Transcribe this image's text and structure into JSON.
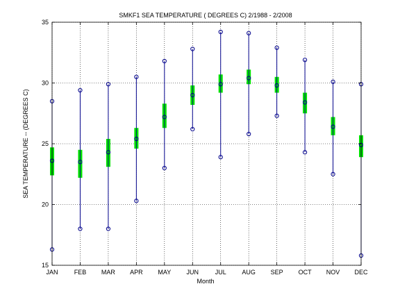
{
  "chart_data": {
    "type": "box",
    "title": "SMKF1  SEA TEMPERATURE ( DEGREES C) 2/1988 - 2/2008",
    "xlabel": "Month",
    "ylabel": "SEA TEMPERATURE -- (DEGREES C)",
    "ylim": [
      15,
      35
    ],
    "yticks": [
      15,
      20,
      25,
      30,
      35
    ],
    "grid": true,
    "categories": [
      "JAN",
      "FEB",
      "MAR",
      "APR",
      "MAY",
      "JUN",
      "JUL",
      "AUG",
      "SEP",
      "OCT",
      "NOV",
      "DEC"
    ],
    "series": [
      {
        "min": [
          16.3,
          18.0,
          18.0,
          20.3,
          23.0,
          26.2,
          23.9,
          25.8,
          27.3,
          24.3,
          22.5,
          15.8
        ]
      },
      {
        "q1": [
          22.4,
          22.2,
          23.1,
          24.6,
          26.3,
          28.2,
          29.2,
          29.9,
          29.2,
          27.5,
          25.7,
          23.9
        ]
      },
      {
        "mean": [
          23.6,
          23.5,
          24.3,
          25.4,
          27.2,
          29.0,
          29.9,
          30.4,
          29.8,
          28.4,
          26.4,
          24.9
        ]
      },
      {
        "q3": [
          24.7,
          24.5,
          25.4,
          26.3,
          28.3,
          29.8,
          30.7,
          31.1,
          30.5,
          29.2,
          27.2,
          25.7
        ]
      },
      {
        "max": [
          28.5,
          29.4,
          29.9,
          30.5,
          31.8,
          32.8,
          34.2,
          34.1,
          32.9,
          31.9,
          30.1,
          29.9
        ]
      }
    ]
  },
  "colors": {
    "whisker": "#00008b",
    "box": "#00e000",
    "marker": "#00008b",
    "grid": "#000000"
  }
}
